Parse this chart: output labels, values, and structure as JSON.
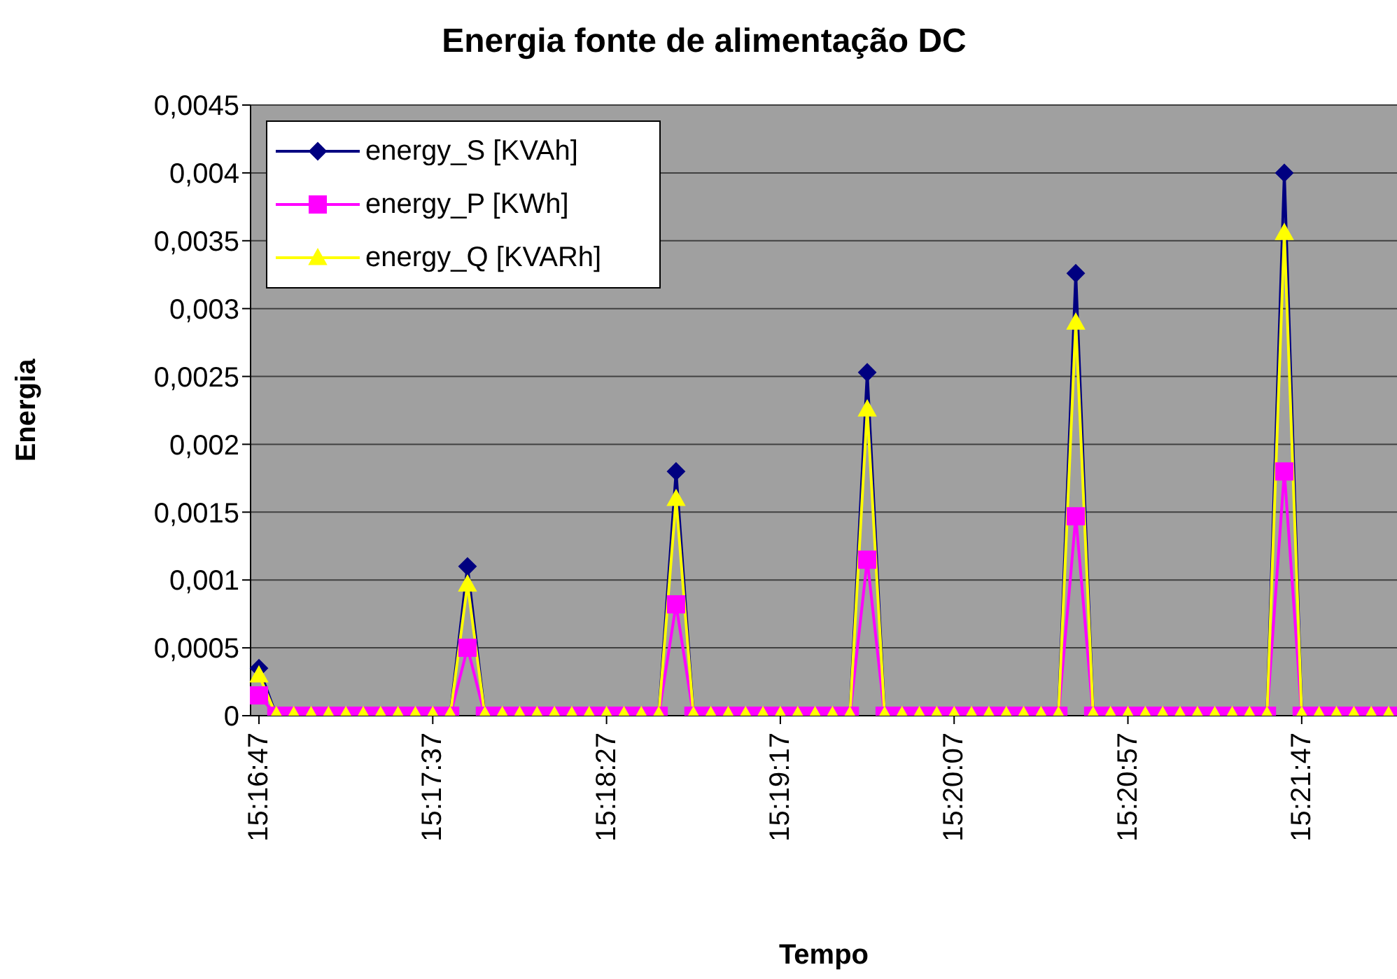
{
  "chart_data": {
    "type": "line",
    "title": "Energia fonte de alimentação DC",
    "xlabel": "Tempo",
    "ylabel": "Energia",
    "categories": [
      "15:16:47",
      null,
      null,
      null,
      null,
      null,
      null,
      null,
      null,
      null,
      "15:17:37",
      null,
      null,
      null,
      null,
      null,
      null,
      null,
      null,
      null,
      "15:18:27",
      null,
      null,
      null,
      null,
      null,
      null,
      null,
      null,
      null,
      "15:19:17",
      null,
      null,
      null,
      null,
      null,
      null,
      null,
      null,
      null,
      "15:20:07",
      null,
      null,
      null,
      null,
      null,
      null,
      null,
      null,
      null,
      "15:20:57",
      null,
      null,
      null,
      null,
      null,
      null,
      null,
      null,
      null,
      "15:21:47",
      null,
      null,
      null,
      null,
      null
    ],
    "series": [
      {
        "name": "energy_S [KVAh]",
        "color": "#000080",
        "marker": "diamond",
        "values": [
          0.00035,
          0,
          null,
          null,
          null,
          null,
          null,
          null,
          null,
          null,
          null,
          0,
          0.0011,
          0,
          null,
          null,
          null,
          null,
          null,
          null,
          null,
          null,
          null,
          0,
          0.0018,
          0,
          null,
          null,
          null,
          null,
          null,
          null,
          null,
          null,
          0,
          0.00253,
          0,
          null,
          null,
          null,
          null,
          null,
          null,
          null,
          null,
          null,
          0,
          0.00326,
          0,
          null,
          null,
          null,
          null,
          null,
          null,
          null,
          null,
          null,
          0,
          0.004,
          0,
          null,
          null,
          null,
          null,
          null
        ]
      },
      {
        "name": "energy_P [KWh]",
        "color": "#ff00ff",
        "marker": "square",
        "values": [
          0.00015,
          0,
          0,
          0,
          0,
          0,
          0,
          0,
          0,
          0,
          0,
          0,
          0.0005,
          0,
          0,
          0,
          0,
          0,
          0,
          0,
          0,
          0,
          0,
          0,
          0.00082,
          0,
          0,
          0,
          0,
          0,
          0,
          0,
          0,
          0,
          0,
          0.00115,
          0,
          0,
          0,
          0,
          0,
          0,
          0,
          0,
          0,
          0,
          0,
          0.00147,
          0,
          0,
          0,
          0,
          0,
          0,
          0,
          0,
          0,
          0,
          0,
          0.0018,
          0,
          0,
          0,
          0,
          0,
          0
        ]
      },
      {
        "name": "energy_Q [KVARh]",
        "color": "#ffff00",
        "marker": "triangle",
        "values": [
          0.0003,
          0,
          0,
          0,
          0,
          0,
          0,
          0,
          0,
          0,
          0,
          0,
          0.00097,
          0,
          0,
          0,
          0,
          0,
          0,
          0,
          0,
          0,
          0,
          0,
          0.0016,
          0,
          0,
          0,
          0,
          0,
          0,
          0,
          0,
          0,
          0,
          0.00226,
          0,
          0,
          0,
          0,
          0,
          0,
          0,
          0,
          0,
          0,
          0,
          0.0029,
          0,
          0,
          0,
          0,
          0,
          0,
          0,
          0,
          0,
          0,
          0,
          0.00356,
          0,
          0,
          0,
          0,
          0,
          0
        ]
      }
    ],
    "ylim": [
      0,
      0.0045
    ],
    "yticks": [
      {
        "value": 0,
        "label": "0"
      },
      {
        "value": 0.0005,
        "label": "0,0005"
      },
      {
        "value": 0.001,
        "label": "0,001"
      },
      {
        "value": 0.0015,
        "label": "0,0015"
      },
      {
        "value": 0.002,
        "label": "0,002"
      },
      {
        "value": 0.0025,
        "label": "0,0025"
      },
      {
        "value": 0.003,
        "label": "0,003"
      },
      {
        "value": 0.0035,
        "label": "0,0035"
      },
      {
        "value": 0.004,
        "label": "0,004"
      },
      {
        "value": 0.0045,
        "label": "0,0045"
      }
    ],
    "grid": "y",
    "legend": "top left",
    "line_style": "solid"
  }
}
